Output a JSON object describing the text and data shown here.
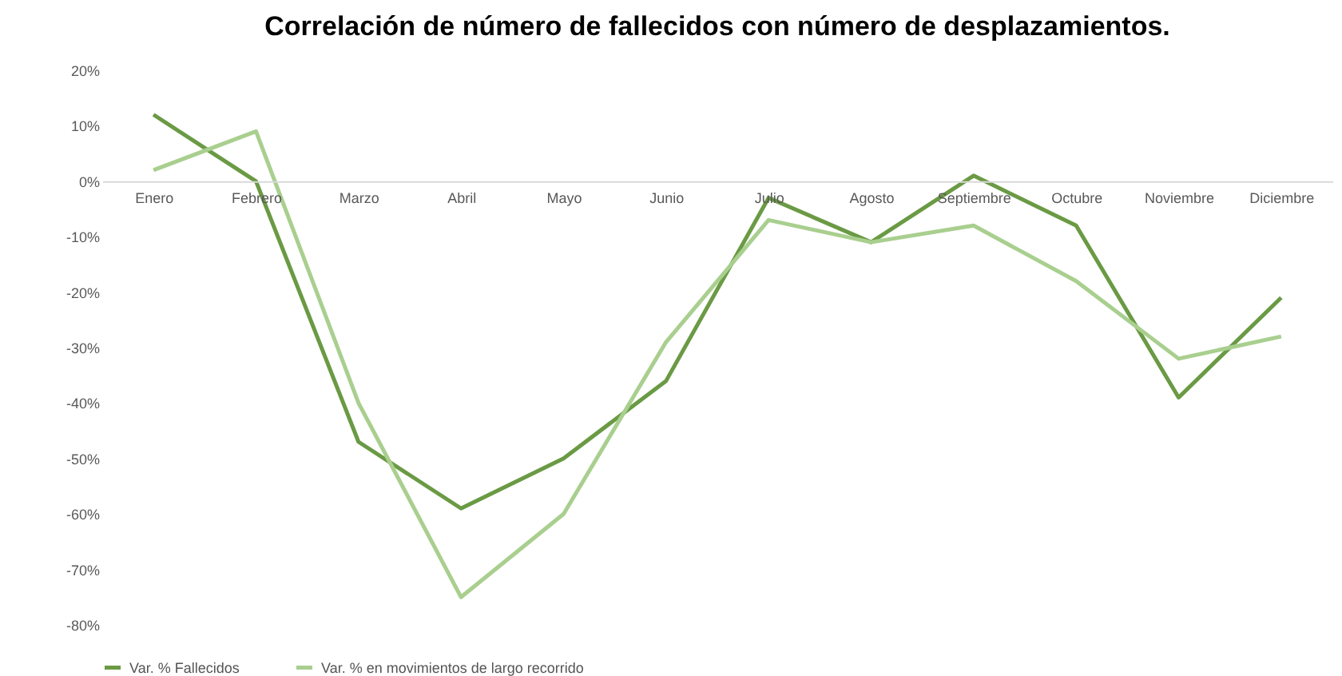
{
  "chart_data": {
    "type": "line",
    "title": "Correlación de número de fallecidos con número de desplazamientos.",
    "categories": [
      "Enero",
      "Febrero",
      "Marzo",
      "Abril",
      "Mayo",
      "Junio",
      "Julio",
      "Agosto",
      "Septiembre",
      "Octubre",
      "Noviembre",
      "Diciembre"
    ],
    "series": [
      {
        "name": "Var. % Fallecidos",
        "color": "#6a9a44",
        "values": [
          12,
          0,
          -47,
          -59,
          -50,
          -36,
          -3,
          -11,
          1,
          -8,
          -39,
          -21
        ]
      },
      {
        "name": "Var. % en movimientos de largo recorrido",
        "color": "#a9cf8f",
        "values": [
          2,
          9,
          -40,
          -75,
          -60,
          -29,
          -7,
          -11,
          -8,
          -18,
          -32,
          -28
        ]
      }
    ],
    "ylim": [
      -80,
      20
    ],
    "yticks": [
      {
        "value": 20,
        "label": "20%"
      },
      {
        "value": 10,
        "label": "10%"
      },
      {
        "value": 0,
        "label": "0%"
      },
      {
        "value": -10,
        "label": "-10%"
      },
      {
        "value": -20,
        "label": "-20%"
      },
      {
        "value": -30,
        "label": "-30%"
      },
      {
        "value": -40,
        "label": "-40%"
      },
      {
        "value": -50,
        "label": "-50%"
      },
      {
        "value": -60,
        "label": "-60%"
      },
      {
        "value": -70,
        "label": "-70%"
      },
      {
        "value": -80,
        "label": "-80%"
      }
    ],
    "legend": "bottom"
  }
}
